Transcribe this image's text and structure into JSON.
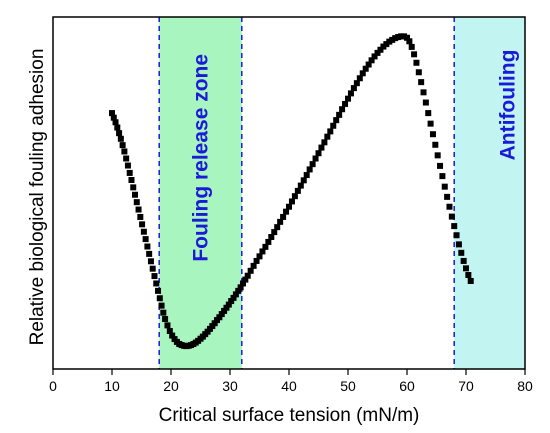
{
  "chart_data": {
    "type": "scatter",
    "title": "",
    "xlabel": "Critical surface tension (mN/m)",
    "ylabel": "Relative biological fouling adhesion",
    "xlim": [
      0,
      80
    ],
    "ylim": [
      0,
      1
    ],
    "xticks": [
      0,
      10,
      20,
      30,
      40,
      50,
      60,
      70,
      80
    ],
    "yticks": [],
    "grid": false,
    "legend": "none",
    "regions": [
      {
        "name": "Fouling release zone",
        "x0": 18,
        "x1": 32,
        "color": "#a8f5c0"
      },
      {
        "name": "Antifouling",
        "x0": 68,
        "x1": 80,
        "color": "#c2f4f2"
      }
    ],
    "marker_color": "#000000",
    "boundary_color": "#1a1ad8",
    "series": [
      {
        "name": "",
        "points": [
          [
            10.0,
            0.727
          ],
          [
            10.3,
            0.714
          ],
          [
            10.6,
            0.701
          ],
          [
            10.9,
            0.686
          ],
          [
            11.2,
            0.67
          ],
          [
            11.5,
            0.654
          ],
          [
            11.8,
            0.636
          ],
          [
            12.1,
            0.618
          ],
          [
            12.4,
            0.598
          ],
          [
            12.7,
            0.578
          ],
          [
            13.0,
            0.557
          ],
          [
            13.3,
            0.537
          ],
          [
            13.6,
            0.516
          ],
          [
            13.9,
            0.495
          ],
          [
            14.2,
            0.474
          ],
          [
            14.5,
            0.453
          ],
          [
            14.8,
            0.432
          ],
          [
            15.1,
            0.411
          ],
          [
            15.4,
            0.39
          ],
          [
            15.7,
            0.369
          ],
          [
            16.0,
            0.348
          ],
          [
            16.3,
            0.327
          ],
          [
            16.6,
            0.306
          ],
          [
            16.9,
            0.285
          ],
          [
            17.2,
            0.264
          ],
          [
            17.5,
            0.243
          ],
          [
            17.8,
            0.222
          ],
          [
            18.1,
            0.201
          ],
          [
            18.4,
            0.18
          ],
          [
            18.7,
            0.16
          ],
          [
            19.0,
            0.142
          ],
          [
            19.4,
            0.124
          ],
          [
            19.8,
            0.108
          ],
          [
            20.2,
            0.095
          ],
          [
            20.6,
            0.085
          ],
          [
            21.0,
            0.077
          ],
          [
            21.4,
            0.071
          ],
          [
            21.8,
            0.068
          ],
          [
            22.2,
            0.066
          ],
          [
            22.6,
            0.065
          ],
          [
            23.0,
            0.066
          ],
          [
            23.4,
            0.068
          ],
          [
            23.8,
            0.071
          ],
          [
            24.2,
            0.075
          ],
          [
            24.6,
            0.08
          ],
          [
            25.0,
            0.086
          ],
          [
            25.4,
            0.092
          ],
          [
            25.8,
            0.099
          ],
          [
            26.2,
            0.106
          ],
          [
            26.6,
            0.114
          ],
          [
            27.0,
            0.122
          ],
          [
            27.4,
            0.13
          ],
          [
            27.8,
            0.139
          ],
          [
            28.2,
            0.147
          ],
          [
            28.6,
            0.156
          ],
          [
            29.0,
            0.165
          ],
          [
            29.4,
            0.174
          ],
          [
            29.8,
            0.183
          ],
          [
            30.2,
            0.193
          ],
          [
            30.6,
            0.202
          ],
          [
            31.0,
            0.212
          ],
          [
            31.4,
            0.222
          ],
          [
            31.8,
            0.232
          ],
          [
            32.2,
            0.243
          ],
          [
            32.6,
            0.254
          ],
          [
            33.0,
            0.265
          ],
          [
            33.5,
            0.279
          ],
          [
            34.0,
            0.293
          ],
          [
            34.5,
            0.307
          ],
          [
            35.0,
            0.32
          ],
          [
            35.5,
            0.334
          ],
          [
            36.0,
            0.347
          ],
          [
            36.5,
            0.361
          ],
          [
            37.0,
            0.375
          ],
          [
            37.5,
            0.389
          ],
          [
            38.0,
            0.403
          ],
          [
            38.5,
            0.418
          ],
          [
            39.0,
            0.432
          ],
          [
            39.5,
            0.447
          ],
          [
            40.0,
            0.461
          ],
          [
            40.5,
            0.476
          ],
          [
            41.0,
            0.491
          ],
          [
            41.5,
            0.506
          ],
          [
            42.0,
            0.521
          ],
          [
            42.5,
            0.536
          ],
          [
            43.0,
            0.551
          ],
          [
            43.5,
            0.567
          ],
          [
            44.0,
            0.582
          ],
          [
            44.5,
            0.598
          ],
          [
            45.0,
            0.613
          ],
          [
            45.5,
            0.629
          ],
          [
            46.0,
            0.644
          ],
          [
            46.5,
            0.66
          ],
          [
            47.0,
            0.675
          ],
          [
            47.5,
            0.691
          ],
          [
            48.0,
            0.707
          ],
          [
            48.5,
            0.722
          ],
          [
            49.0,
            0.738
          ],
          [
            49.5,
            0.753
          ],
          [
            50.0,
            0.768
          ],
          [
            50.5,
            0.783
          ],
          [
            51.0,
            0.798
          ],
          [
            51.5,
            0.812
          ],
          [
            52.0,
            0.826
          ],
          [
            52.5,
            0.84
          ],
          [
            53.0,
            0.853
          ],
          [
            53.5,
            0.865
          ],
          [
            54.0,
            0.877
          ],
          [
            54.5,
            0.888
          ],
          [
            55.0,
            0.898
          ],
          [
            55.5,
            0.907
          ],
          [
            56.0,
            0.916
          ],
          [
            56.5,
            0.923
          ],
          [
            57.0,
            0.93
          ],
          [
            57.5,
            0.935
          ],
          [
            58.0,
            0.94
          ],
          [
            58.5,
            0.943
          ],
          [
            59.0,
            0.945
          ],
          [
            59.5,
            0.945
          ],
          [
            60.0,
            0.941
          ],
          [
            60.4,
            0.931
          ],
          [
            60.8,
            0.915
          ],
          [
            61.2,
            0.894
          ],
          [
            61.6,
            0.87
          ],
          [
            62.0,
            0.843
          ],
          [
            62.4,
            0.815
          ],
          [
            62.8,
            0.786
          ],
          [
            63.2,
            0.757
          ],
          [
            63.6,
            0.727
          ],
          [
            64.0,
            0.697
          ],
          [
            64.4,
            0.667
          ],
          [
            64.8,
            0.637
          ],
          [
            65.2,
            0.607
          ],
          [
            65.6,
            0.577
          ],
          [
            66.0,
            0.548
          ],
          [
            66.4,
            0.518
          ],
          [
            66.8,
            0.489
          ],
          [
            67.2,
            0.461
          ],
          [
            67.6,
            0.433
          ],
          [
            68.0,
            0.406
          ],
          [
            68.4,
            0.38
          ],
          [
            68.8,
            0.354
          ],
          [
            69.2,
            0.33
          ],
          [
            69.6,
            0.307
          ],
          [
            70.0,
            0.286
          ],
          [
            70.4,
            0.267
          ],
          [
            70.8,
            0.25
          ]
        ]
      }
    ]
  }
}
